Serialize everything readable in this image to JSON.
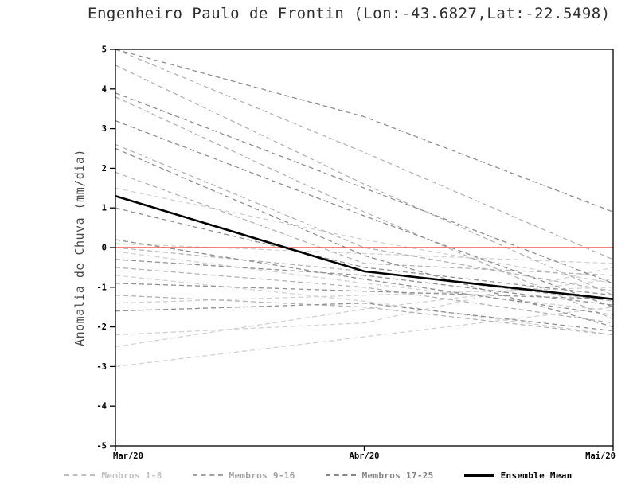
{
  "chart_data": {
    "type": "line",
    "title": "Engenheiro Paulo de Frontin (Lon:-43.6827,Lat:-22.5498)",
    "ylabel": "Anomalia de Chuva (mm/dia)",
    "xlabel": "",
    "ylim": [
      -5,
      5
    ],
    "y_ticks": [
      5,
      4,
      3,
      2,
      1,
      0,
      -1,
      -2,
      -3,
      -4,
      -5
    ],
    "x_tick_labels": [
      "Mar/20",
      "Abr/20",
      "Mai/20"
    ],
    "grid": false,
    "zero_line": {
      "value": 0,
      "color": "#f15a4e"
    },
    "axis_color": "#000000",
    "groups": [
      {
        "name": "Membros 1-8",
        "color": "#d2d2d2",
        "members": [
          [
            1.5,
            0.2,
            -0.9
          ],
          [
            0.1,
            -0.15,
            -0.4
          ],
          [
            -0.1,
            -0.9,
            -1.6
          ],
          [
            -0.7,
            -1.35,
            -2.2
          ],
          [
            -1.4,
            -1.2,
            -1.0
          ],
          [
            -2.2,
            -1.9,
            -0.5
          ],
          [
            -2.5,
            -1.55,
            -0.8
          ],
          [
            -3.0,
            -2.25,
            -1.5
          ]
        ]
      },
      {
        "name": "Membros 9-16",
        "color": "#b4b4b4",
        "members": [
          [
            5.0,
            2.4,
            -0.3
          ],
          [
            4.6,
            1.6,
            -1.2
          ],
          [
            3.8,
            0.9,
            -1.8
          ],
          [
            2.6,
            0.0,
            -1.1
          ],
          [
            1.9,
            -0.4,
            -0.7
          ],
          [
            0.0,
            -0.6,
            -1.35
          ],
          [
            -0.5,
            -1.0,
            -1.9
          ],
          [
            -1.2,
            -1.5,
            -2.2
          ]
        ]
      },
      {
        "name": "Membros 17-25",
        "color": "#909090",
        "members": [
          [
            5.0,
            3.3,
            0.9
          ],
          [
            3.9,
            1.5,
            -0.9
          ],
          [
            3.2,
            0.8,
            -1.5
          ],
          [
            2.5,
            -0.2,
            -2.0
          ],
          [
            1.0,
            -0.5,
            -1.2
          ],
          [
            0.2,
            -0.8,
            -1.7
          ],
          [
            -0.3,
            -0.7,
            -1.45
          ],
          [
            -0.9,
            -1.1,
            -1.3
          ],
          [
            -1.6,
            -1.4,
            -2.1
          ]
        ]
      }
    ],
    "ensemble_mean": {
      "name": "Ensemble Mean",
      "color": "#000000",
      "values": [
        1.3,
        -0.6,
        -1.3
      ]
    },
    "legend_position": "bottom"
  },
  "legend": {
    "items": [
      {
        "label": "Membros 1-8",
        "color": "#c0c0c0",
        "style": "dashed"
      },
      {
        "label": "Membros 9-16",
        "color": "#a2a2a2",
        "style": "dashed"
      },
      {
        "label": "Membros 17-25",
        "color": "#848484",
        "style": "dashed"
      },
      {
        "label": "Ensemble Mean",
        "color": "#000000",
        "style": "solid"
      }
    ]
  }
}
